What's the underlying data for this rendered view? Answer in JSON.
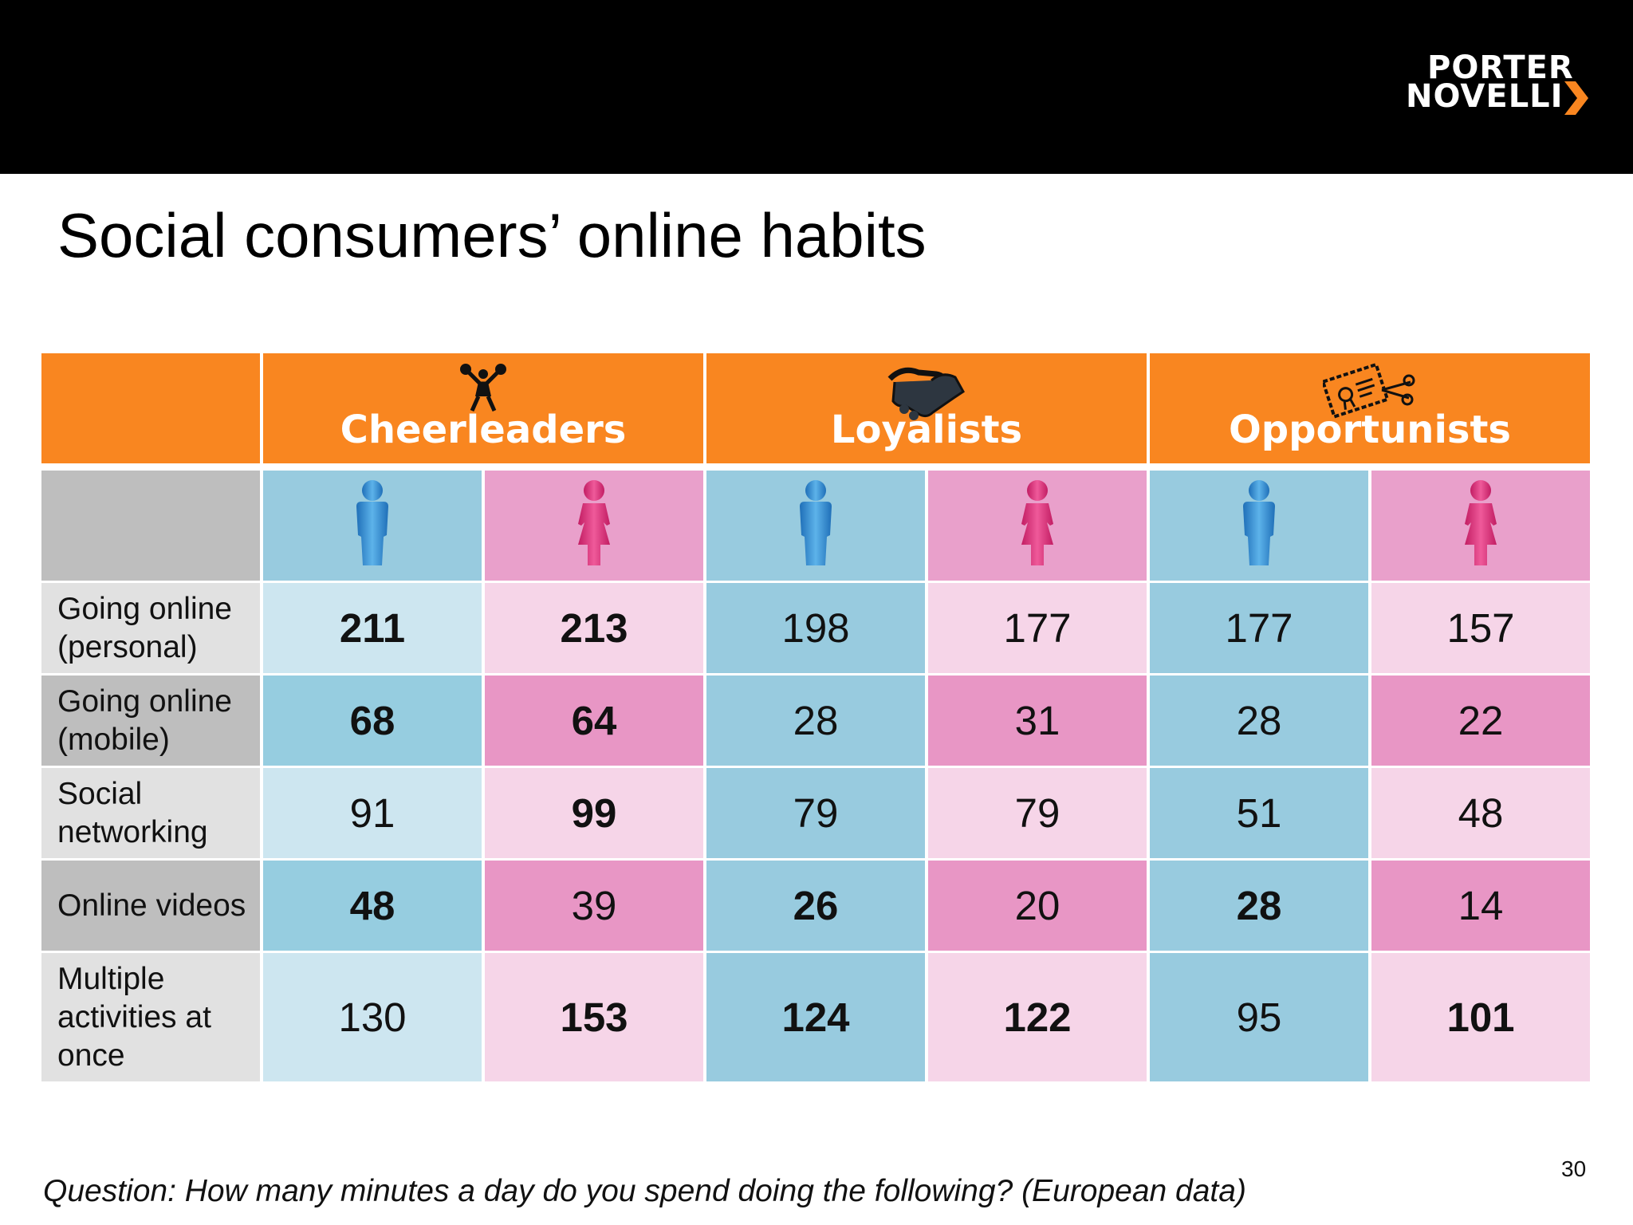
{
  "logo": {
    "line1": "PORTER",
    "line2": "NOVELLI"
  },
  "title": "Social consumers’ online habits",
  "groups": [
    {
      "name": "Cheerleaders",
      "icon": "cheerleader-icon"
    },
    {
      "name": "Loyalists",
      "icon": "handshake-icon"
    },
    {
      "name": "Opportunists",
      "icon": "coupon-scissors-icon"
    }
  ],
  "genders": [
    "male-icon",
    "female-icon"
  ],
  "rows": [
    {
      "label": "Going online (personal)",
      "values": [
        "211",
        "213",
        "198",
        "177",
        "177",
        "157"
      ],
      "bold": [
        true,
        true,
        false,
        false,
        false,
        false
      ]
    },
    {
      "label": "Going online (mobile)",
      "values": [
        "68",
        "64",
        "28",
        "31",
        "28",
        "22"
      ],
      "bold": [
        true,
        true,
        false,
        false,
        false,
        false
      ]
    },
    {
      "label": "Social networking",
      "values": [
        "91",
        "99",
        "79",
        "79",
        "51",
        "48"
      ],
      "bold": [
        false,
        true,
        false,
        false,
        false,
        false
      ]
    },
    {
      "label": "Online videos",
      "values": [
        "48",
        "39",
        "26",
        "20",
        "28",
        "14"
      ],
      "bold": [
        true,
        false,
        true,
        false,
        true,
        false
      ]
    },
    {
      "label": "Multiple activities at once",
      "values": [
        "130",
        "153",
        "124",
        "122",
        "95",
        "101"
      ],
      "bold": [
        false,
        true,
        true,
        true,
        false,
        true
      ]
    }
  ],
  "question": "Question: How many minutes a day do you spend doing the following? (European data)",
  "page_number": "30",
  "colors": {
    "orange": "#F98620",
    "grey_dark": "#BEBEBE",
    "grey_light": "#E1E1E1",
    "blue_dark": "#96CDE0",
    "blue_light": "#CDE6F0",
    "pink_dark": "#E896C5",
    "pink_light": "#F6D5E8",
    "blue_mid": "#98CBDF",
    "pink_mid": "#E9A0CB"
  }
}
